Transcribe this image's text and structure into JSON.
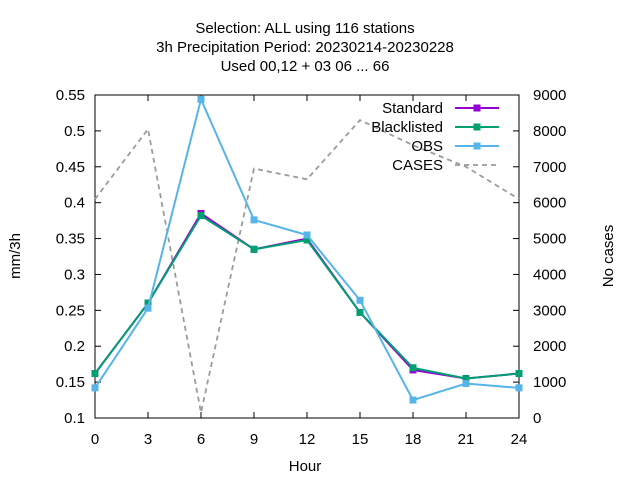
{
  "chart_data": {
    "type": "line",
    "title_lines": [
      "Selection: ALL using   116 stations",
      "3h Precipitation   Period: 20230214-20230228",
      "Used  00,12  + 03 06 ... 66"
    ],
    "xlabel": "Hour",
    "ylabel": "mm/3h",
    "y2label": "No cases",
    "x": [
      0,
      3,
      6,
      9,
      12,
      15,
      18,
      21,
      24
    ],
    "xticks": [
      "0",
      "3",
      "6",
      "9",
      "12",
      "15",
      "18",
      "21",
      "24"
    ],
    "xlim": [
      0,
      24
    ],
    "ylim": [
      0.1,
      0.55
    ],
    "yticks": [
      "0.1",
      "0.15",
      "0.2",
      "0.25",
      "0.3",
      "0.35",
      "0.4",
      "0.45",
      "0.5",
      "0.55"
    ],
    "y2lim": [
      0,
      9000
    ],
    "y2ticks": [
      "0",
      "1000",
      "2000",
      "3000",
      "4000",
      "5000",
      "6000",
      "7000",
      "8000",
      "9000"
    ],
    "grid": false,
    "legend_position": "top-right",
    "series": [
      {
        "name": "Standard",
        "color": "#9400d3",
        "axis": "left",
        "style": "solid",
        "marker": "cross",
        "values": [
          0.162,
          0.26,
          0.385,
          0.335,
          0.35,
          0.247,
          0.167,
          0.155,
          0.162
        ]
      },
      {
        "name": "Blacklisted",
        "color": "#009e73",
        "axis": "left",
        "style": "solid",
        "marker": "cross",
        "values": [
          0.162,
          0.26,
          0.382,
          0.335,
          0.348,
          0.247,
          0.17,
          0.155,
          0.162
        ]
      },
      {
        "name": "OBS",
        "color": "#56b4e9",
        "axis": "left",
        "style": "solid",
        "marker": "cross",
        "values": [
          0.142,
          0.253,
          0.544,
          0.376,
          0.355,
          0.264,
          0.125,
          0.148,
          0.142
        ]
      },
      {
        "name": "CASES",
        "color": "#9b9b9b",
        "axis": "right",
        "style": "dashed",
        "marker": "none",
        "values": [
          6100,
          8050,
          150,
          6950,
          6650,
          8300,
          7600,
          7000,
          6100
        ]
      }
    ]
  }
}
